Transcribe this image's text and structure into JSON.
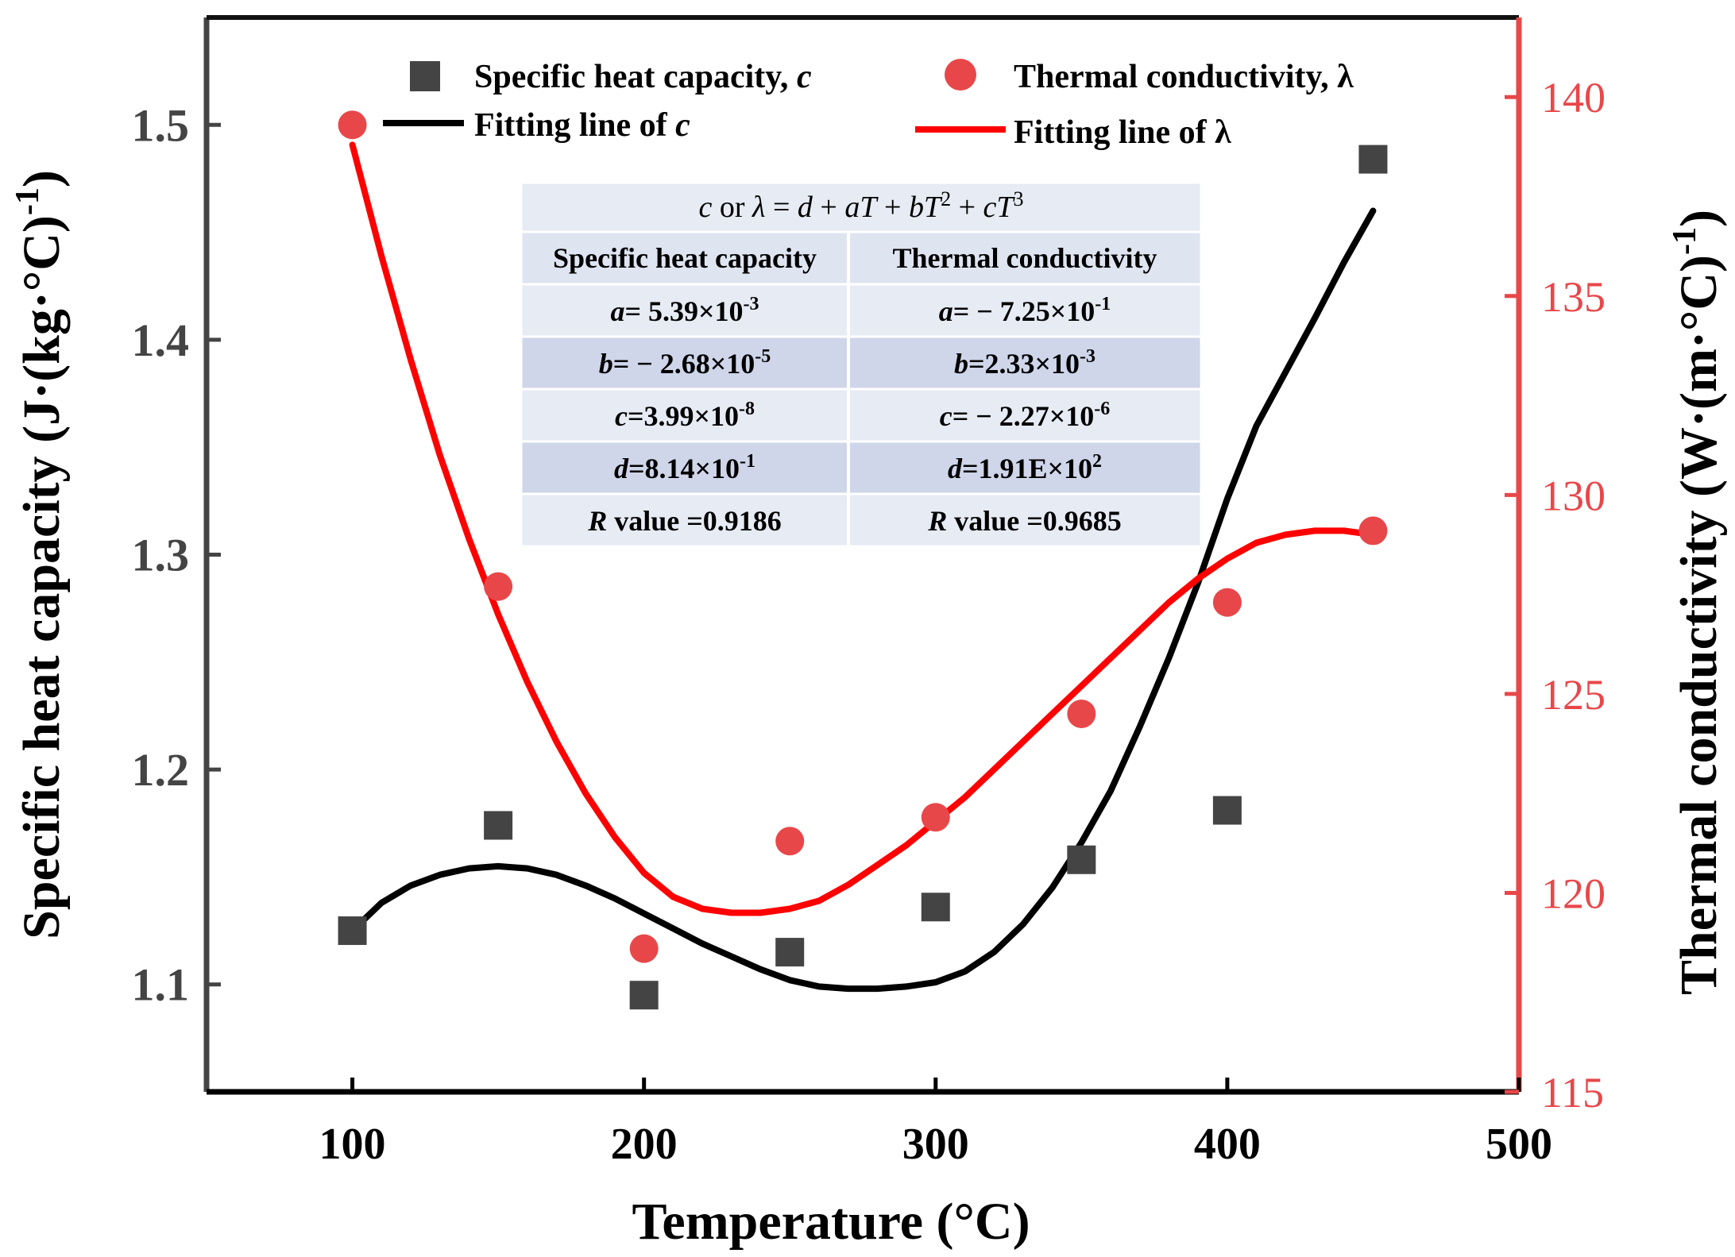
{
  "chart_data": {
    "type": "scatter",
    "title": "",
    "xlabel": "Temperature (°C)",
    "ylabel": "Specific heat capacity (J·(kg·°C)-1)",
    "y2label": "Thermal conductivity (W·(m·°C)-1)",
    "xlim": [
      50,
      500
    ],
    "ylim": [
      1.05,
      1.55
    ],
    "y2lim": [
      115,
      142
    ],
    "x_ticks": [
      "100",
      "200",
      "300",
      "400",
      "500"
    ],
    "y_ticks": [
      "1.1",
      "1.2",
      "1.3",
      "1.4",
      "1.5"
    ],
    "y2_ticks": [
      "115",
      "120",
      "125",
      "130",
      "135",
      "140"
    ],
    "colors": {
      "c": "#444444",
      "lambda": "#e8474a",
      "c_fit": "#000000",
      "lambda_fit": "#ff0000",
      "axis_right": "#e8474a",
      "table_a": "#e6ebf4",
      "table_b": "#cfd6ea",
      "table_header": "#dfe4f1"
    },
    "series": [
      {
        "name": "Specific heat capacity, c",
        "axis": "left",
        "marker": "square",
        "x": [
          100,
          150,
          200,
          250,
          300,
          350,
          400,
          450
        ],
        "values": [
          1.125,
          1.174,
          1.095,
          1.115,
          1.136,
          1.158,
          1.181,
          1.484
        ]
      },
      {
        "name": "Thermal conductivity, λ",
        "axis": "right",
        "marker": "circle",
        "x": [
          100,
          150,
          200,
          250,
          300,
          350,
          400,
          450
        ],
        "values": [
          139.3,
          127.7,
          118.6,
          121.3,
          121.9,
          124.5,
          127.3,
          129.1
        ]
      }
    ],
    "fit_lines": [
      {
        "name": "Fitting line of c",
        "axis": "left",
        "x": [
          100,
          110,
          120,
          130,
          140,
          150,
          160,
          170,
          180,
          190,
          200,
          210,
          220,
          230,
          240,
          250,
          260,
          270,
          280,
          290,
          300,
          310,
          320,
          330,
          340,
          350,
          360,
          370,
          380,
          390,
          400,
          410,
          420,
          430,
          440,
          450
        ],
        "values": [
          1.125,
          1.138,
          1.146,
          1.151,
          1.154,
          1.155,
          1.154,
          1.151,
          1.146,
          1.14,
          1.133,
          1.126,
          1.119,
          1.113,
          1.107,
          1.102,
          1.099,
          1.098,
          1.098,
          1.099,
          1.101,
          1.106,
          1.115,
          1.128,
          1.145,
          1.166,
          1.19,
          1.22,
          1.252,
          1.287,
          1.326,
          1.36,
          1.385,
          1.41,
          1.436,
          1.46
        ]
      },
      {
        "name": "Fitting line of λ",
        "axis": "right",
        "x": [
          100,
          110,
          120,
          130,
          140,
          150,
          160,
          170,
          180,
          190,
          200,
          210,
          220,
          230,
          240,
          250,
          260,
          270,
          280,
          290,
          300,
          310,
          320,
          330,
          340,
          350,
          360,
          370,
          380,
          390,
          400,
          410,
          420,
          430,
          440,
          450
        ],
        "values": [
          138.8,
          136.0,
          133.4,
          131.0,
          128.9,
          127.0,
          125.3,
          123.8,
          122.5,
          121.4,
          120.5,
          119.9,
          119.6,
          119.5,
          119.5,
          119.6,
          119.8,
          120.2,
          120.7,
          121.2,
          121.8,
          122.4,
          123.1,
          123.8,
          124.5,
          125.2,
          125.9,
          126.6,
          127.3,
          127.9,
          128.4,
          128.8,
          129.0,
          129.1,
          129.1,
          129.0
        ]
      }
    ],
    "legend": {
      "position": "top",
      "items": [
        {
          "label": "Specific heat capacity, ",
          "var": "c",
          "kind": "marker-square"
        },
        {
          "label": "Thermal conductivity, λ",
          "var": "",
          "kind": "marker-circle"
        },
        {
          "label": "Fitting line of ",
          "var": "c",
          "kind": "line-black"
        },
        {
          "label": "Fitting line of  λ",
          "var": "",
          "kind": "line-red"
        }
      ]
    },
    "table": {
      "equation": "c or λ = d + aT + bT2 + cT3",
      "headers": [
        "Specific heat capacity",
        "Thermal conductivity"
      ],
      "rows": [
        [
          {
            "v": "a",
            "t": "= 5.39×10",
            "e": "-3"
          },
          {
            "v": "a",
            "t": "=  − 7.25×10",
            "e": "-1"
          }
        ],
        [
          {
            "v": "b",
            "t": "= − 2.68×10",
            "e": "-5"
          },
          {
            "v": "b",
            "t": "=2.33×10",
            "e": "-3"
          }
        ],
        [
          {
            "v": "c",
            "t": "=3.99×10",
            "e": "-8"
          },
          {
            "v": "c",
            "t": "= − 2.27×10",
            "e": "-6"
          }
        ],
        [
          {
            "v": "d",
            "t": "=8.14×10",
            "e": "-1"
          },
          {
            "v": "d",
            "t": "=1.91E×10",
            "e": "2"
          }
        ],
        [
          {
            "v": "R",
            "t": " value =0.9186",
            "e": ""
          },
          {
            "v": "R",
            "t": " value =0.9685",
            "e": ""
          }
        ]
      ]
    }
  }
}
